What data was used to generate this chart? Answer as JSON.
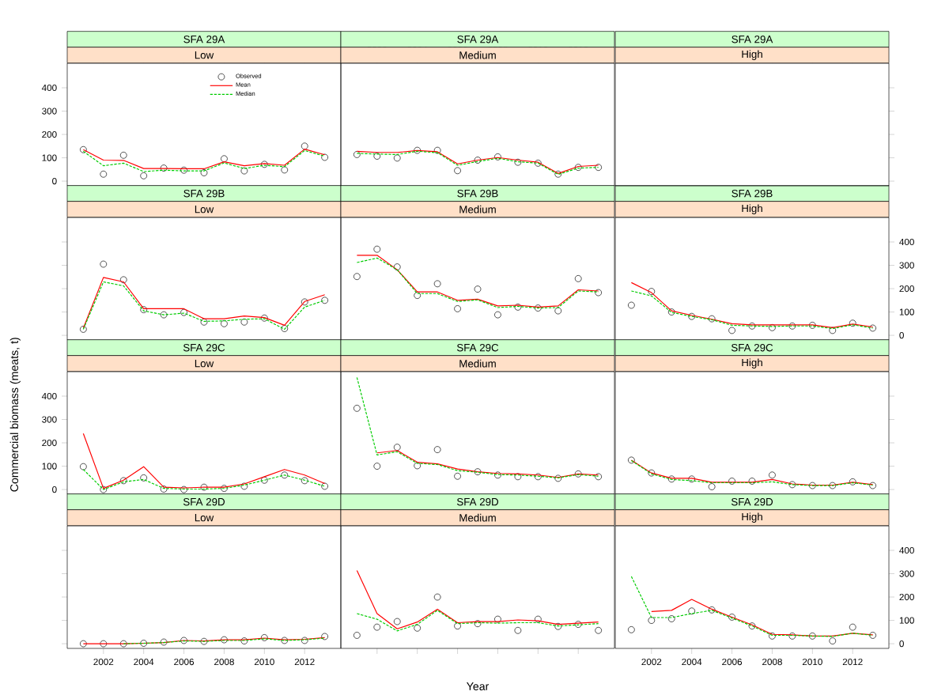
{
  "chart_data": [
    {
      "type": "line",
      "title": "SFA 29A",
      "subtitle": "Low",
      "x": [
        2001,
        2002,
        2003,
        2004,
        2005,
        2006,
        2007,
        2008,
        2009,
        2010,
        2011,
        2012,
        2013
      ],
      "xlim": [
        2000.2,
        2013.8
      ],
      "ylim": [
        -20,
        505
      ],
      "xticks": [
        2002,
        2004,
        2006,
        2008,
        2010,
        2012
      ],
      "yticks": [
        0,
        100,
        200,
        300,
        400
      ],
      "tick_labels": "y",
      "legend": "top",
      "series": [
        {
          "name": "Observed",
          "type": "scatter",
          "color": "#000000",
          "marker": "circle",
          "values": [
            135,
            30,
            111,
            23,
            56,
            47,
            36,
            96,
            44,
            72,
            48,
            150,
            102
          ]
        },
        {
          "name": "Mean",
          "type": "line",
          "color": "#ff0000",
          "line_style": "solid",
          "values": [
            135,
            90,
            89,
            54,
            54,
            53,
            53,
            83,
            66,
            75,
            68,
            137,
            113
          ]
        },
        {
          "name": "Median",
          "type": "line",
          "color": "#00cc00",
          "line_style": "dashed",
          "values": [
            128,
            66,
            77,
            41,
            47,
            44,
            44,
            78,
            54,
            68,
            62,
            131,
            107
          ]
        }
      ]
    },
    {
      "type": "line",
      "title": "SFA 29A",
      "subtitle": "Medium",
      "x": [
        2001,
        2002,
        2003,
        2004,
        2005,
        2006,
        2007,
        2008,
        2009,
        2010,
        2011,
        2012,
        2013
      ],
      "xlim": [
        2000.2,
        2013.8
      ],
      "ylim": [
        -20,
        505
      ],
      "xticks": [
        2002,
        2004,
        2006,
        2008,
        2010,
        2012
      ],
      "yticks": [
        0,
        100,
        200,
        300,
        400
      ],
      "tick_labels": "x",
      "series": [
        {
          "type": "scatter",
          "color": "#000000",
          "marker": "circle",
          "values": [
            114,
            107,
            99,
            132,
            132,
            45,
            90,
            104,
            81,
            77,
            30,
            59,
            59
          ]
        },
        {
          "type": "line",
          "color": "#ff0000",
          "line_style": "solid",
          "values": [
            128,
            123,
            123,
            131,
            126,
            74,
            90,
            101,
            90,
            81,
            33,
            63,
            68
          ]
        },
        {
          "type": "line",
          "color": "#00cc00",
          "line_style": "dashed",
          "values": [
            119,
            116,
            114,
            128,
            122,
            68,
            84,
            98,
            83,
            77,
            29,
            56,
            59
          ]
        }
      ]
    },
    {
      "type": "line",
      "title": "SFA 29B",
      "subtitle": "Low",
      "x": [
        2001,
        2002,
        2003,
        2004,
        2005,
        2006,
        2007,
        2008,
        2009,
        2010,
        2011,
        2012,
        2013
      ],
      "xlim": [
        2000.2,
        2013.8
      ],
      "ylim": [
        -20,
        505
      ],
      "xticks": [
        2002,
        2004,
        2006,
        2008,
        2010,
        2012
      ],
      "yticks": [
        0,
        100,
        200,
        300,
        400
      ],
      "tick_labels": false,
      "series": [
        {
          "type": "scatter",
          "color": "#000000",
          "marker": "circle",
          "values": [
            26,
            305,
            238,
            110,
            88,
            98,
            57,
            50,
            57,
            74,
            29,
            143,
            150
          ]
        },
        {
          "type": "line",
          "color": "#ff0000",
          "line_style": "solid",
          "values": [
            31,
            248,
            229,
            114,
            114,
            114,
            71,
            71,
            83,
            76,
            43,
            145,
            174
          ]
        },
        {
          "type": "line",
          "color": "#00cc00",
          "line_style": "dashed",
          "values": [
            26,
            229,
            212,
            105,
            88,
            95,
            60,
            62,
            69,
            71,
            26,
            121,
            150
          ]
        }
      ]
    },
    {
      "type": "line",
      "title": "SFA 29B",
      "subtitle": "Medium",
      "x": [
        2001,
        2002,
        2003,
        2004,
        2005,
        2006,
        2007,
        2008,
        2009,
        2010,
        2011,
        2012,
        2013
      ],
      "xlim": [
        2000.2,
        2013.8
      ],
      "ylim": [
        -20,
        505
      ],
      "xticks": [
        2002,
        2004,
        2006,
        2008,
        2010,
        2012
      ],
      "yticks": [
        0,
        100,
        200,
        300,
        400
      ],
      "tick_labels": false,
      "series": [
        {
          "type": "scatter",
          "color": "#000000",
          "marker": "circle",
          "values": [
            252,
            369,
            293,
            171,
            221,
            114,
            198,
            88,
            121,
            117,
            105,
            243,
            183
          ]
        },
        {
          "type": "line",
          "color": "#ff0000",
          "line_style": "solid",
          "values": [
            343,
            343,
            281,
            186,
            186,
            150,
            155,
            126,
            129,
            121,
            126,
            195,
            190
          ]
        },
        {
          "type": "line",
          "color": "#00cc00",
          "line_style": "dashed",
          "values": [
            312,
            331,
            281,
            179,
            179,
            145,
            152,
            119,
            124,
            117,
            119,
            190,
            186
          ]
        }
      ]
    },
    {
      "type": "line",
      "title": "SFA 29B",
      "subtitle": "High",
      "x": [
        2001,
        2002,
        2003,
        2004,
        2005,
        2006,
        2007,
        2008,
        2009,
        2010,
        2011,
        2012,
        2013
      ],
      "xlim": [
        2000.2,
        2013.8
      ],
      "ylim": [
        -20,
        505
      ],
      "xticks": [
        2002,
        2004,
        2006,
        2008,
        2010,
        2012
      ],
      "yticks": [
        0,
        100,
        200,
        300,
        400
      ],
      "tick_labels": "y",
      "series": [
        {
          "type": "scatter",
          "color": "#000000",
          "marker": "circle",
          "values": [
            129,
            188,
            100,
            81,
            71,
            21,
            40,
            33,
            40,
            43,
            21,
            52,
            31
          ]
        },
        {
          "type": "line",
          "color": "#ff0000",
          "line_style": "solid",
          "values": [
            226,
            183,
            105,
            86,
            69,
            50,
            45,
            45,
            45,
            45,
            33,
            48,
            36
          ]
        },
        {
          "type": "line",
          "color": "#00cc00",
          "line_style": "dashed",
          "values": [
            190,
            169,
            98,
            81,
            67,
            43,
            40,
            38,
            40,
            40,
            29,
            45,
            31
          ]
        }
      ]
    },
    {
      "type": "line",
      "title": "SFA 29C",
      "subtitle": "Low",
      "ylabel": "Commercial biomass (meats, t)",
      "x": [
        2001,
        2002,
        2003,
        2004,
        2005,
        2006,
        2007,
        2008,
        2009,
        2010,
        2011,
        2012,
        2013
      ],
      "xlim": [
        2000.2,
        2013.8
      ],
      "ylim": [
        -20,
        505
      ],
      "xticks": [
        2002,
        2004,
        2006,
        2008,
        2010,
        2012
      ],
      "yticks": [
        0,
        100,
        200,
        300,
        400
      ],
      "tick_labels": "y",
      "series": [
        {
          "type": "scatter",
          "color": "#000000",
          "marker": "circle",
          "values": [
            98,
            0,
            38,
            50,
            2,
            0,
            10,
            5,
            14,
            40,
            62,
            38,
            14
          ]
        },
        {
          "type": "line",
          "color": "#ff0000",
          "line_style": "solid",
          "values": [
            240,
            5,
            40,
            98,
            10,
            7,
            10,
            10,
            24,
            55,
            86,
            62,
            26
          ]
        },
        {
          "type": "line",
          "color": "#00cc00",
          "line_style": "dashed",
          "values": [
            86,
            0,
            33,
            43,
            5,
            2,
            2,
            5,
            19,
            40,
            62,
            40,
            14
          ]
        }
      ]
    },
    {
      "type": "line",
      "title": "SFA 29C",
      "subtitle": "Medium",
      "x": [
        2001,
        2002,
        2003,
        2004,
        2005,
        2006,
        2007,
        2008,
        2009,
        2010,
        2011,
        2012,
        2013
      ],
      "xlim": [
        2000.2,
        2013.8
      ],
      "ylim": [
        -20,
        505
      ],
      "xticks": [
        2002,
        2004,
        2006,
        2008,
        2010,
        2012
      ],
      "yticks": [
        0,
        100,
        200,
        300,
        400
      ],
      "tick_labels": false,
      "series": [
        {
          "type": "scatter",
          "color": "#000000",
          "marker": "circle",
          "values": [
            348,
            100,
            181,
            102,
            171,
            57,
            76,
            62,
            55,
            55,
            48,
            67,
            55
          ]
        },
        {
          "type": "line",
          "color": "#ff0000",
          "line_style": "solid",
          "values": [
            null,
            157,
            167,
            117,
            110,
            88,
            76,
            69,
            67,
            62,
            52,
            67,
            62
          ]
        },
        {
          "type": "line",
          "color": "#00cc00",
          "line_style": "dashed",
          "values": [
            480,
            148,
            162,
            112,
            107,
            81,
            74,
            64,
            62,
            57,
            50,
            64,
            57
          ]
        }
      ]
    },
    {
      "type": "line",
      "title": "SFA 29C",
      "subtitle": "High",
      "x": [
        2001,
        2002,
        2003,
        2004,
        2005,
        2006,
        2007,
        2008,
        2009,
        2010,
        2011,
        2012,
        2013
      ],
      "xlim": [
        2000.2,
        2013.8
      ],
      "ylim": [
        -20,
        505
      ],
      "xticks": [
        2002,
        2004,
        2006,
        2008,
        2010,
        2012
      ],
      "yticks": [
        0,
        100,
        200,
        300,
        400
      ],
      "tick_labels": false,
      "series": [
        {
          "type": "scatter",
          "color": "#000000",
          "marker": "circle",
          "values": [
            126,
            71,
            45,
            45,
            12,
            36,
            36,
            62,
            21,
            17,
            17,
            33,
            17
          ]
        },
        {
          "type": "line",
          "color": "#ff0000",
          "line_style": "solid",
          "values": [
            126,
            71,
            48,
            48,
            31,
            31,
            31,
            43,
            24,
            19,
            19,
            31,
            21
          ]
        },
        {
          "type": "line",
          "color": "#00cc00",
          "line_style": "dashed",
          "values": [
            124,
            67,
            43,
            38,
            29,
            29,
            29,
            33,
            21,
            17,
            17,
            29,
            19
          ]
        }
      ]
    },
    {
      "type": "line",
      "title": "SFA 29D",
      "subtitle": "Low",
      "x": [
        2001,
        2002,
        2003,
        2004,
        2005,
        2006,
        2007,
        2008,
        2009,
        2010,
        2011,
        2012,
        2013
      ],
      "xlim": [
        2000.2,
        2013.8
      ],
      "ylim": [
        -20,
        505
      ],
      "xticks": [
        2002,
        2004,
        2006,
        2008,
        2010,
        2012
      ],
      "yticks": [
        0,
        100,
        200,
        300,
        400
      ],
      "tick_labels": "x",
      "series": [
        {
          "type": "scatter",
          "color": "#000000",
          "marker": "circle",
          "values": [
            0,
            0,
            0,
            2,
            7,
            14,
            10,
            17,
            12,
            26,
            14,
            14,
            31
          ]
        },
        {
          "type": "line",
          "color": "#ff0000",
          "line_style": "solid",
          "values": [
            0,
            0,
            0,
            2,
            5,
            14,
            12,
            17,
            17,
            24,
            17,
            19,
            26
          ]
        },
        {
          "type": "line",
          "color": "#00cc00",
          "line_style": "dashed",
          "values": [
            null,
            null,
            0,
            2,
            5,
            12,
            10,
            14,
            14,
            21,
            14,
            17,
            24
          ]
        }
      ]
    },
    {
      "type": "line",
      "title": "SFA 29D",
      "subtitle": "Medium",
      "xlabel": "Year",
      "x": [
        2001,
        2002,
        2003,
        2004,
        2005,
        2006,
        2007,
        2008,
        2009,
        2010,
        2011,
        2012,
        2013
      ],
      "xlim": [
        2000.2,
        2013.8
      ],
      "ylim": [
        -20,
        505
      ],
      "xticks": [
        2002,
        2004,
        2006,
        2008,
        2010,
        2012
      ],
      "yticks": [
        0,
        100,
        200,
        300,
        400
      ],
      "tick_labels": false,
      "series": [
        {
          "type": "scatter",
          "color": "#000000",
          "marker": "circle",
          "values": [
            36,
            71,
            95,
            67,
            200,
            76,
            86,
            105,
            57,
            105,
            74,
            83,
            57
          ]
        },
        {
          "type": "line",
          "color": "#ff0000",
          "line_style": "solid",
          "values": [
            314,
            129,
            64,
            93,
            148,
            90,
            95,
            95,
            102,
            98,
            83,
            88,
            93
          ]
        },
        {
          "type": "line",
          "color": "#00cc00",
          "line_style": "dashed",
          "values": [
            129,
            105,
            55,
            83,
            143,
            86,
            90,
            88,
            90,
            90,
            76,
            81,
            86
          ]
        }
      ]
    },
    {
      "type": "line",
      "title": "SFA 29D",
      "subtitle": "High",
      "x": [
        2001,
        2002,
        2003,
        2004,
        2005,
        2006,
        2007,
        2008,
        2009,
        2010,
        2011,
        2012,
        2013
      ],
      "xlim": [
        2000.2,
        2013.8
      ],
      "ylim": [
        -20,
        505
      ],
      "xticks": [
        2002,
        2004,
        2006,
        2008,
        2010,
        2012
      ],
      "yticks": [
        0,
        100,
        200,
        300,
        400
      ],
      "series": [
        {
          "type": "scatter",
          "color": "#000000",
          "marker": "circle",
          "values": [
            60,
            100,
            107,
            140,
            145,
            114,
            76,
            33,
            33,
            33,
            12,
            71,
            36
          ]
        },
        {
          "type": "line",
          "color": "#ff0000",
          "line_style": "solid",
          "values": [
            null,
            138,
            143,
            190,
            148,
            114,
            81,
            40,
            38,
            33,
            33,
            45,
            38
          ]
        },
        {
          "type": "line",
          "color": "#00cc00",
          "line_style": "dashed",
          "values": [
            288,
            112,
            112,
            129,
            143,
            110,
            76,
            36,
            36,
            33,
            31,
            45,
            36
          ]
        }
      ]
    },
    {
      "type": "line",
      "title": "SFA 29A",
      "subtitle": "High",
      "xlim": [
        2000.2,
        2013.8
      ],
      "ylim": [
        -20,
        505
      ],
      "xticks": [
        2002,
        2004,
        2006,
        2008,
        2010,
        2012
      ],
      "yticks": [
        0,
        100,
        200,
        300,
        400
      ],
      "tick_labels": false
    }
  ]
}
